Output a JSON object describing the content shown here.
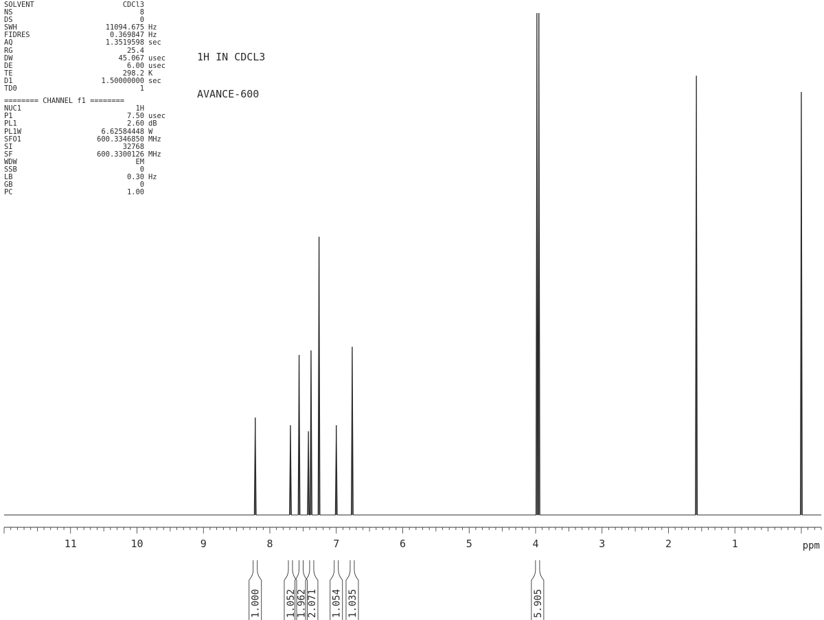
{
  "acquisition_params": [
    {
      "key": "SOLVENT",
      "value": "CDCl3",
      "unit": ""
    },
    {
      "key": "NS",
      "value": "8",
      "unit": ""
    },
    {
      "key": "DS",
      "value": "0",
      "unit": ""
    },
    {
      "key": "SWH",
      "value": "11094.675",
      "unit": "Hz"
    },
    {
      "key": "FIDRES",
      "value": "0.369847",
      "unit": "Hz"
    },
    {
      "key": "AQ",
      "value": "1.3519598",
      "unit": "sec"
    },
    {
      "key": "RG",
      "value": "25.4",
      "unit": ""
    },
    {
      "key": "DW",
      "value": "45.067",
      "unit": "usec"
    },
    {
      "key": "DE",
      "value": "6.00",
      "unit": "usec"
    },
    {
      "key": "TE",
      "value": "298.2",
      "unit": "K"
    },
    {
      "key": "D1",
      "value": "1.50000000",
      "unit": "sec"
    },
    {
      "key": "TD0",
      "value": "1",
      "unit": ""
    }
  ],
  "channel_header": "======== CHANNEL f1 ========",
  "channel_params": [
    {
      "key": "NUC1",
      "value": "1H",
      "unit": ""
    },
    {
      "key": "P1",
      "value": "7.50",
      "unit": "usec"
    },
    {
      "key": "PL1",
      "value": "2.60",
      "unit": "dB"
    },
    {
      "key": "PL1W",
      "value": "6.62584448",
      "unit": "W"
    },
    {
      "key": "SFO1",
      "value": "600.3346850",
      "unit": "MHz"
    },
    {
      "key": "SI",
      "value": "32768",
      "unit": ""
    },
    {
      "key": "SF",
      "value": "600.3300126",
      "unit": "MHz"
    },
    {
      "key": "WDW",
      "value": "EM",
      "unit": ""
    },
    {
      "key": "SSB",
      "value": "0",
      "unit": ""
    },
    {
      "key": "LB",
      "value": "0.30",
      "unit": "Hz"
    },
    {
      "key": "GB",
      "value": "0",
      "unit": ""
    },
    {
      "key": "PC",
      "value": "1.00",
      "unit": ""
    }
  ],
  "spectrum_title_line1": "1H IN CDCL3",
  "spectrum_title_line2": "AVANCE-600",
  "chart_data": {
    "type": "line",
    "xlabel": "ppm",
    "x_reversed": true,
    "xlim": [
      12.0,
      -0.3
    ],
    "ylim": [
      0,
      1
    ],
    "grid": false,
    "x_ticks": [
      11,
      10,
      9,
      8,
      7,
      6,
      5,
      4,
      3,
      2,
      1
    ],
    "x_tick_labels": [
      "11",
      "10",
      "9",
      "8",
      "7",
      "6",
      "5",
      "4",
      "3",
      "2",
      "1"
    ],
    "peaks": [
      {
        "ppm": 8.22,
        "height": 0.191
      },
      {
        "ppm": 7.69,
        "height": 0.176
      },
      {
        "ppm": 7.56,
        "height": 0.314
      },
      {
        "ppm": 7.42,
        "height": 0.164
      },
      {
        "ppm": 7.38,
        "height": 0.323
      },
      {
        "ppm": 7.26,
        "height": 0.546
      },
      {
        "ppm": 7.0,
        "height": 0.176
      },
      {
        "ppm": 6.76,
        "height": 0.33
      },
      {
        "ppm": 3.98,
        "height": 0.985
      },
      {
        "ppm": 3.95,
        "height": 0.985
      },
      {
        "ppm": 1.58,
        "height": 0.862
      },
      {
        "ppm": 0.0,
        "height": 0.83
      }
    ],
    "integrals": [
      {
        "ppm": 8.22,
        "value": "1.000"
      },
      {
        "ppm": 7.69,
        "value": "1.052"
      },
      {
        "ppm": 7.53,
        "value": "1.962"
      },
      {
        "ppm": 7.37,
        "value": "2.071"
      },
      {
        "ppm": 7.0,
        "value": "1.054"
      },
      {
        "ppm": 6.76,
        "value": "1.035"
      },
      {
        "ppm": 3.97,
        "value": "5.905"
      }
    ]
  }
}
